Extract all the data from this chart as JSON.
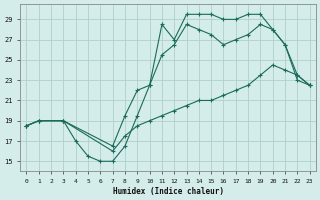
{
  "xlabel": "Humidex (Indice chaleur)",
  "bg_color": "#d4ecea",
  "grid_color": "#b0d0cc",
  "line_color": "#1a6b5a",
  "xlim": [
    -0.5,
    23.5
  ],
  "ylim": [
    14.0,
    30.5
  ],
  "xticks": [
    0,
    1,
    2,
    3,
    4,
    5,
    6,
    7,
    8,
    9,
    10,
    11,
    12,
    13,
    14,
    15,
    16,
    17,
    18,
    19,
    20,
    21,
    22,
    23
  ],
  "yticks": [
    15,
    17,
    19,
    21,
    23,
    25,
    27,
    29
  ],
  "line1_x": [
    0,
    1,
    3,
    4,
    5,
    6,
    7,
    8,
    9,
    10,
    11,
    12,
    13,
    14,
    15,
    16,
    17,
    18,
    19,
    20,
    21,
    22,
    23
  ],
  "line1_y": [
    18.5,
    19.0,
    19.0,
    17.0,
    15.5,
    15.0,
    15.0,
    16.5,
    19.5,
    22.5,
    28.5,
    27.0,
    29.5,
    29.5,
    29.5,
    29.0,
    29.0,
    29.5,
    29.5,
    28.0,
    26.5,
    23.0,
    22.5
  ],
  "line2_x": [
    0,
    1,
    3,
    7,
    8,
    9,
    10,
    11,
    12,
    13,
    14,
    15,
    16,
    17,
    18,
    19,
    20,
    21,
    22,
    23
  ],
  "line2_y": [
    18.5,
    19.0,
    19.0,
    16.5,
    19.5,
    22.0,
    22.5,
    25.5,
    26.5,
    28.5,
    28.0,
    27.5,
    26.5,
    27.0,
    27.5,
    28.5,
    28.0,
    26.5,
    23.5,
    22.5
  ],
  "line3_x": [
    0,
    1,
    3,
    7,
    8,
    9,
    10,
    11,
    12,
    13,
    14,
    15,
    16,
    17,
    18,
    19,
    20,
    21,
    22,
    23
  ],
  "line3_y": [
    18.5,
    19.0,
    19.0,
    16.0,
    17.5,
    18.5,
    19.0,
    19.5,
    20.0,
    20.5,
    21.0,
    21.0,
    21.5,
    22.0,
    22.5,
    23.5,
    24.5,
    24.0,
    23.5,
    22.5
  ]
}
